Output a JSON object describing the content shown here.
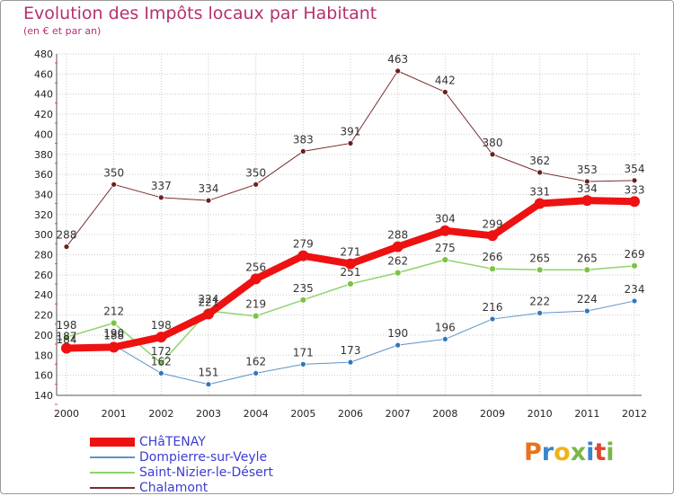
{
  "header": {
    "title": "Evolution des Impôts locaux par Habitant",
    "subtitle": "(en € et par an)"
  },
  "brand": {
    "letters": [
      "P",
      "r",
      "o",
      "x",
      "i",
      "t",
      "i"
    ],
    "colors": [
      "#e8731c",
      "#3a86c9",
      "#f2b21a",
      "#7ab648",
      "#3a86c9",
      "#e0452d",
      "#7ab648"
    ]
  },
  "chart_data": {
    "type": "line",
    "x": [
      2000,
      2001,
      2002,
      2003,
      2004,
      2005,
      2006,
      2007,
      2008,
      2009,
      2010,
      2011,
      2012
    ],
    "ylim": [
      140,
      480
    ],
    "yticks": [
      140,
      160,
      180,
      200,
      220,
      240,
      260,
      280,
      300,
      320,
      340,
      360,
      380,
      400,
      420,
      440,
      460,
      480
    ],
    "grid": true,
    "legend_placement": "bottom",
    "series": [
      {
        "name": "Chalamont",
        "color": "#7a2d2d",
        "values": [
          288,
          350,
          337,
          334,
          350,
          383,
          391,
          463,
          442,
          380,
          362,
          353,
          354
        ]
      },
      {
        "name": "Saint-Nizier-le-Désert",
        "color": "#8fd36a",
        "values": [
          198,
          212,
          172,
          224,
          219,
          235,
          251,
          262,
          275,
          266,
          265,
          265,
          269
        ]
      },
      {
        "name": "Dompierre-sur-Veyle",
        "color": "#5b94c8",
        "values": [
          184,
          190,
          162,
          151,
          162,
          171,
          173,
          190,
          196,
          216,
          222,
          224,
          234
        ]
      },
      {
        "name": "CHâTENAY",
        "color": "#ee1111",
        "values": [
          187,
          188,
          198,
          221,
          256,
          279,
          271,
          288,
          304,
          299,
          331,
          334,
          333
        ]
      }
    ]
  }
}
